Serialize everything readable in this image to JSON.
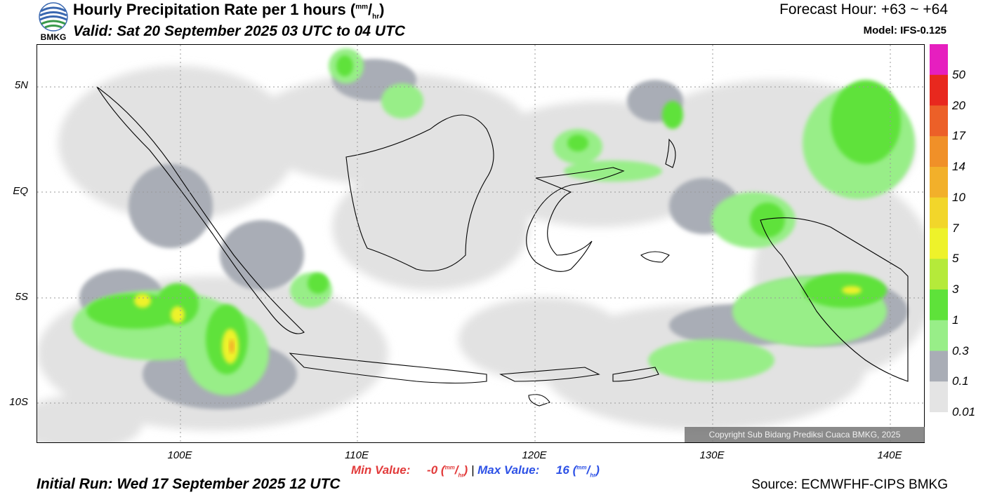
{
  "header": {
    "title_text": "Hourly Precipitation Rate per 1 hours (",
    "title_unit_num": "mm",
    "title_unit_sep": "/",
    "title_unit_den": "hr",
    "title_close": ")",
    "valid": "Valid: Sat 20 September 2025 03 UTC to 04 UTC",
    "forecast_hour": "Forecast Hour: +63 ~ +64",
    "model": "Model: IFS-0.125",
    "logo_text": "BMKG"
  },
  "map": {
    "lat_labels": [
      "5N",
      "EQ",
      "5S",
      "10S"
    ],
    "lon_labels": [
      "100E",
      "110E",
      "120E",
      "130E",
      "140E"
    ],
    "copyright": "Copyright Sub Bidang Prediksi Cuaca BMKG, 2025"
  },
  "colorbar": {
    "labels": [
      "50",
      "20",
      "17",
      "14",
      "10",
      "7",
      "5",
      "3",
      "1",
      "0.3",
      "0.1",
      "0.01"
    ],
    "colors": [
      "#e61fbf",
      "#e8281e",
      "#ec6028",
      "#f09028",
      "#f2b02a",
      "#f2d62a",
      "#eef22a",
      "#b5ea3a",
      "#5ee23a",
      "#98ee88",
      "#a9adb6",
      "#e4e4e4"
    ]
  },
  "footer": {
    "min_label": "Min Value:",
    "min_value": "-0",
    "max_label": "Max Value:",
    "max_value": "16",
    "unit_num": "mm",
    "unit_den": "hr",
    "separator": "|",
    "initial_run": "Initial Run: Wed 17 September 2025 12 UTC",
    "source": "Source: ECMWFHF-CIPS BMKG"
  }
}
